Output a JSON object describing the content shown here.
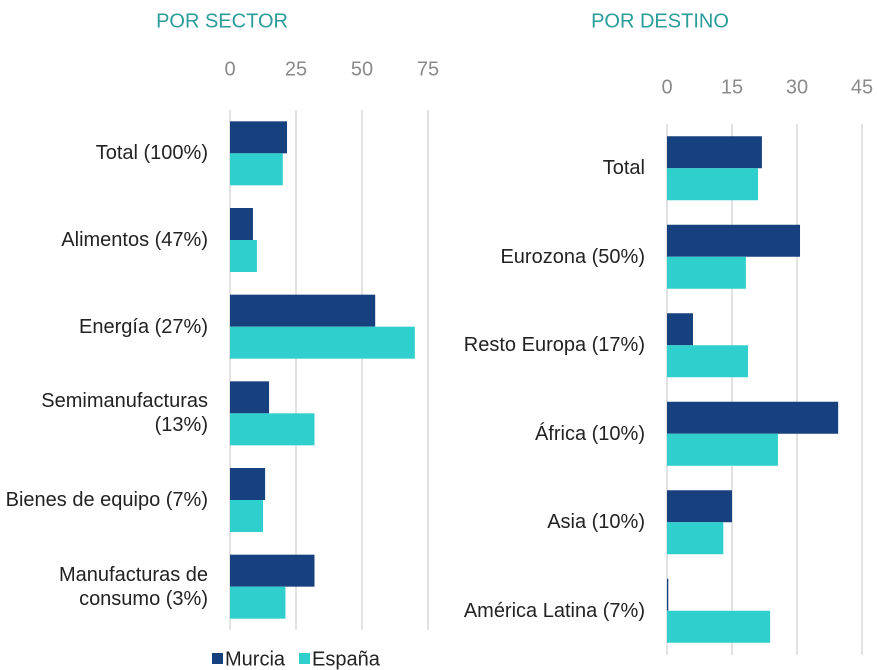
{
  "chart_data": [
    {
      "type": "bar",
      "title": "POR SECTOR",
      "categories": [
        "Total (100%)",
        "Alimentos (47%)",
        "Energía (27%)",
        "Semimanufacturas (13%)",
        "Bienes de equipo (7%)",
        "Manufacturas de consumo (3%)"
      ],
      "series": [
        {
          "name": "Murcia",
          "color": "#17407e",
          "values": [
            21.6,
            8.7,
            55,
            14.8,
            13.3,
            32
          ]
        },
        {
          "name": "España",
          "color": "#2ecfcc",
          "values": [
            20,
            10.2,
            70,
            32,
            12.5,
            21
          ]
        }
      ],
      "xlim": [
        0,
        75
      ],
      "xticks": [
        0,
        25,
        50,
        75
      ],
      "grid": true
    },
    {
      "type": "bar",
      "title": "POR DESTINO",
      "categories": [
        "Total",
        "Eurozona (50%)",
        "Resto Europa (17%)",
        "África (10%)",
        "Asia (10%)",
        "América Latina (7%)"
      ],
      "series": [
        {
          "color": "#17407e",
          "values": [
            21.9,
            30.7,
            6,
            39.5,
            15,
            0.3
          ]
        },
        {
          "color": "#2ecfcc",
          "values": [
            21,
            18.2,
            18.7,
            25.6,
            13,
            23.8
          ]
        }
      ],
      "xlim": [
        0,
        45
      ],
      "xticks": [
        0,
        15,
        30,
        45
      ],
      "grid": true
    }
  ]
}
